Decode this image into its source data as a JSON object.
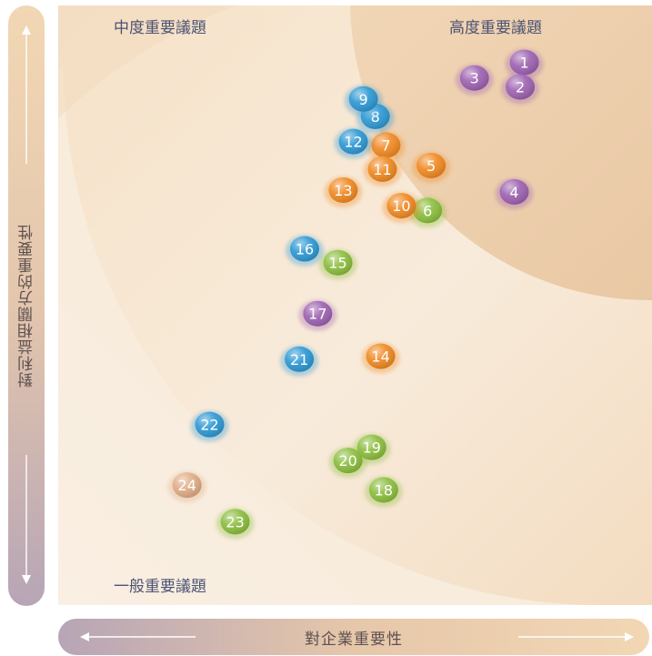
{
  "chart_data": {
    "type": "scatter",
    "title": "",
    "xlabel": "對企業重要性",
    "ylabel": "對利益相關方的重要性",
    "xlim": [
      0,
      100
    ],
    "ylim": [
      0,
      100
    ],
    "grid": false,
    "zones": [
      {
        "name": "高度重要議題",
        "position": "top-right"
      },
      {
        "name": "中度重要議題",
        "position": "top-left"
      },
      {
        "name": "一般重要議題",
        "position": "bottom-left"
      }
    ],
    "category_colors": {
      "purple": "#9e63b1",
      "blue": "#2f99d4",
      "orange": "#f08a24",
      "green": "#8cbe3f",
      "tan": "#e0ad86"
    },
    "points": [
      {
        "label": "1",
        "x": 78.5,
        "y": 90.5,
        "color": "purple"
      },
      {
        "label": "2",
        "x": 77.8,
        "y": 86.4,
        "color": "purple"
      },
      {
        "label": "3",
        "x": 70.1,
        "y": 87.9,
        "color": "purple"
      },
      {
        "label": "4",
        "x": 76.8,
        "y": 68.9,
        "color": "purple"
      },
      {
        "label": "5",
        "x": 62.8,
        "y": 73.3,
        "color": "orange"
      },
      {
        "label": "6",
        "x": 62.2,
        "y": 65.8,
        "color": "green"
      },
      {
        "label": "7",
        "x": 55.2,
        "y": 76.7,
        "color": "orange"
      },
      {
        "label": "8",
        "x": 53.4,
        "y": 81.5,
        "color": "blue"
      },
      {
        "label": "9",
        "x": 51.4,
        "y": 84.4,
        "color": "blue"
      },
      {
        "label": "10",
        "x": 57.8,
        "y": 66.6,
        "color": "orange"
      },
      {
        "label": "11",
        "x": 54.6,
        "y": 72.7,
        "color": "orange"
      },
      {
        "label": "12",
        "x": 49.7,
        "y": 77.3,
        "color": "blue"
      },
      {
        "label": "13",
        "x": 48.0,
        "y": 69.2,
        "color": "orange"
      },
      {
        "label": "14",
        "x": 54.3,
        "y": 41.5,
        "color": "orange"
      },
      {
        "label": "15",
        "x": 47.1,
        "y": 57.1,
        "color": "green"
      },
      {
        "label": "16",
        "x": 41.5,
        "y": 59.4,
        "color": "blue"
      },
      {
        "label": "17",
        "x": 43.7,
        "y": 48.6,
        "color": "purple"
      },
      {
        "label": "18",
        "x": 54.8,
        "y": 19.2,
        "color": "green"
      },
      {
        "label": "19",
        "x": 52.8,
        "y": 26.3,
        "color": "green"
      },
      {
        "label": "20",
        "x": 48.8,
        "y": 24.1,
        "color": "green"
      },
      {
        "label": "21",
        "x": 40.6,
        "y": 41.0,
        "color": "blue"
      },
      {
        "label": "22",
        "x": 25.5,
        "y": 30.1,
        "color": "blue"
      },
      {
        "label": "23",
        "x": 29.8,
        "y": 13.9,
        "color": "green"
      },
      {
        "label": "24",
        "x": 21.7,
        "y": 20.0,
        "color": "tan"
      }
    ]
  }
}
